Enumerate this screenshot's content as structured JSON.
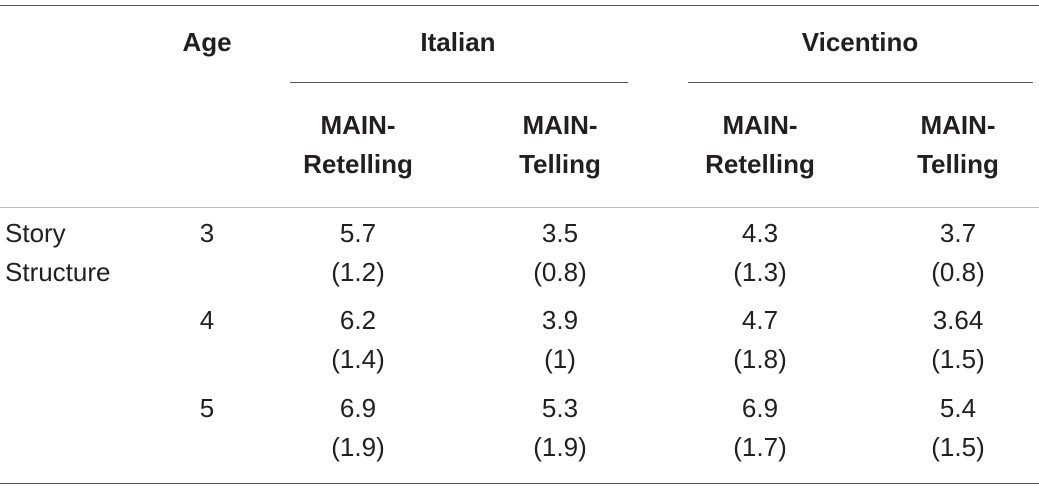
{
  "header": {
    "age": "Age",
    "groups": [
      {
        "label": "Italian",
        "columns": [
          "MAIN-Retelling",
          "MAIN-Telling"
        ]
      },
      {
        "label": "Vicentino",
        "columns": [
          "MAIN-Retelling",
          "MAIN-Telling"
        ]
      }
    ]
  },
  "table": {
    "rows": [
      {
        "label": "Story Structure",
        "age": "3",
        "cells": [
          [
            "5.7",
            "(1.2)"
          ],
          [
            "3.5",
            "(0.8)"
          ],
          [
            "4.3",
            "(1.3)"
          ],
          [
            "3.7",
            "(0.8)"
          ]
        ]
      },
      {
        "age": "4",
        "cells": [
          [
            "6.2",
            "(1.4)"
          ],
          [
            "3.9",
            "(1)"
          ],
          [
            "4.7",
            "(1.8)"
          ],
          [
            "3.64",
            "(1.5)"
          ]
        ]
      },
      {
        "age": "5",
        "cells": [
          [
            "6.9",
            "(1.9)"
          ],
          [
            "5.3",
            "(1.9)"
          ],
          [
            "6.9",
            "(1.7)"
          ],
          [
            "5.4",
            "(1.5)"
          ]
        ]
      }
    ]
  }
}
